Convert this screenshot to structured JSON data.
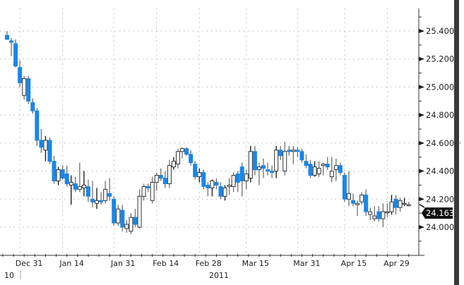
{
  "chart_data": {
    "type": "candlestick",
    "title": "",
    "xlabel": "",
    "ylabel": "",
    "ylim": [
      23.8,
      25.55
    ],
    "grid": true,
    "y_ticks": [
      "24.000",
      "24.200",
      "24.400",
      "24.600",
      "24.800",
      "25.000",
      "25.200",
      "25.400"
    ],
    "x_ticks": [
      {
        "label": "Dec 31",
        "index": 3
      },
      {
        "label": "Jan 14",
        "index": 13
      },
      {
        "label": "Jan 31",
        "index": 25
      },
      {
        "label": "Feb 14",
        "index": 35
      },
      {
        "label": "Feb 28",
        "index": 45
      },
      {
        "label": "Mar 15",
        "index": 56
      },
      {
        "label": "Mar 31",
        "index": 68
      },
      {
        "label": "Apr 15",
        "index": 79
      },
      {
        "label": "Apr 29",
        "index": 89
      }
    ],
    "year_labels": {
      "prev": "10",
      "current": "2011"
    },
    "last_price": "24.163",
    "colors": {
      "down": "#1a86e8",
      "up": "#ffffff",
      "wick": "#6f6f6f",
      "grid": "#b5b5b5",
      "badge": "#111111"
    },
    "ohlc_fields": [
      "open",
      "high",
      "low",
      "close"
    ],
    "ohlc": [
      [
        25.37,
        25.4,
        25.34,
        25.34
      ],
      [
        25.33,
        25.35,
        25.22,
        25.32
      ],
      [
        25.31,
        25.34,
        25.14,
        25.15
      ],
      [
        25.14,
        25.19,
        25.0,
        25.03
      ],
      [
        24.94,
        25.08,
        24.91,
        25.06
      ],
      [
        25.06,
        25.08,
        24.88,
        24.9
      ],
      [
        24.89,
        24.92,
        24.81,
        24.83
      ],
      [
        24.83,
        24.85,
        24.58,
        24.62
      ],
      [
        24.62,
        24.7,
        24.53,
        24.57
      ],
      [
        24.55,
        24.65,
        24.47,
        24.62
      ],
      [
        24.62,
        24.64,
        24.45,
        24.47
      ],
      [
        24.47,
        24.51,
        24.31,
        24.33
      ],
      [
        24.33,
        24.43,
        24.3,
        24.41
      ],
      [
        24.41,
        24.44,
        24.34,
        24.35
      ],
      [
        24.38,
        24.44,
        24.29,
        24.31
      ],
      [
        24.3,
        24.37,
        24.16,
        24.32
      ],
      [
        24.31,
        24.36,
        24.25,
        24.27
      ],
      [
        24.27,
        24.46,
        24.25,
        24.29
      ],
      [
        24.28,
        24.4,
        24.22,
        24.3
      ],
      [
        24.29,
        24.34,
        24.18,
        24.22
      ],
      [
        24.2,
        24.33,
        24.14,
        24.18
      ],
      [
        24.17,
        24.28,
        24.13,
        24.19
      ],
      [
        24.19,
        24.25,
        24.16,
        24.18
      ],
      [
        24.19,
        24.33,
        24.17,
        24.27
      ],
      [
        24.24,
        24.35,
        24.19,
        24.22
      ],
      [
        24.2,
        24.22,
        24.01,
        24.03
      ],
      [
        24.03,
        24.16,
        24.01,
        24.13
      ],
      [
        24.12,
        24.16,
        23.97,
        24.0
      ],
      [
        23.99,
        24.05,
        23.96,
        24.02
      ],
      [
        23.97,
        24.1,
        23.95,
        24.07
      ],
      [
        24.07,
        24.13,
        24.0,
        24.02
      ],
      [
        24.0,
        24.27,
        23.99,
        24.22
      ],
      [
        24.22,
        24.31,
        24.19,
        24.29
      ],
      [
        24.29,
        24.31,
        24.25,
        24.28
      ],
      [
        24.19,
        24.36,
        24.17,
        24.32
      ],
      [
        24.32,
        24.39,
        24.26,
        24.37
      ],
      [
        24.37,
        24.42,
        24.33,
        24.35
      ],
      [
        24.35,
        24.4,
        24.28,
        24.31
      ],
      [
        24.31,
        24.48,
        24.28,
        24.44
      ],
      [
        24.43,
        24.5,
        24.41,
        24.47
      ],
      [
        24.45,
        24.56,
        24.42,
        24.54
      ],
      [
        24.54,
        24.57,
        24.49,
        24.56
      ],
      [
        24.56,
        24.57,
        24.51,
        24.52
      ],
      [
        24.52,
        24.55,
        24.44,
        24.46
      ],
      [
        24.45,
        24.47,
        24.34,
        24.36
      ],
      [
        24.36,
        24.42,
        24.32,
        24.39
      ],
      [
        24.39,
        24.41,
        24.27,
        24.29
      ],
      [
        24.3,
        24.32,
        24.22,
        24.28
      ],
      [
        24.28,
        24.34,
        24.22,
        24.33
      ],
      [
        24.32,
        24.35,
        24.27,
        24.3
      ],
      [
        24.29,
        24.32,
        24.2,
        24.22
      ],
      [
        24.22,
        24.3,
        24.19,
        24.28
      ],
      [
        24.29,
        24.35,
        24.23,
        24.3
      ],
      [
        24.29,
        24.39,
        24.25,
        24.37
      ],
      [
        24.38,
        24.4,
        24.25,
        24.32
      ],
      [
        24.43,
        24.46,
        24.22,
        24.33
      ],
      [
        24.33,
        24.41,
        24.27,
        24.38
      ],
      [
        24.35,
        24.58,
        24.32,
        24.54
      ],
      [
        24.54,
        24.58,
        24.37,
        24.41
      ],
      [
        24.41,
        24.46,
        24.3,
        24.43
      ],
      [
        24.44,
        24.49,
        24.35,
        24.42
      ],
      [
        24.41,
        24.46,
        24.37,
        24.4
      ],
      [
        24.4,
        24.44,
        24.35,
        24.39
      ],
      [
        24.4,
        24.58,
        24.35,
        24.55
      ],
      [
        24.55,
        24.58,
        24.48,
        24.51
      ],
      [
        24.4,
        24.61,
        24.37,
        24.54
      ],
      [
        24.55,
        24.58,
        24.51,
        24.54
      ],
      [
        24.54,
        24.58,
        24.45,
        24.55
      ],
      [
        24.55,
        24.57,
        24.5,
        24.54
      ],
      [
        24.54,
        24.56,
        24.46,
        24.48
      ],
      [
        24.47,
        24.52,
        24.42,
        24.44
      ],
      [
        24.45,
        24.48,
        24.35,
        24.37
      ],
      [
        24.37,
        24.47,
        24.36,
        24.43
      ],
      [
        24.38,
        24.47,
        24.36,
        24.42
      ],
      [
        24.44,
        24.46,
        24.37,
        24.45
      ],
      [
        24.45,
        24.5,
        24.41,
        24.43
      ],
      [
        24.36,
        24.5,
        24.32,
        24.4
      ],
      [
        24.41,
        24.49,
        24.33,
        24.44
      ],
      [
        24.44,
        24.46,
        24.37,
        24.39
      ],
      [
        24.37,
        24.39,
        24.18,
        24.2
      ],
      [
        24.2,
        24.4,
        24.15,
        24.24
      ],
      [
        24.19,
        24.24,
        24.15,
        24.17
      ],
      [
        24.16,
        24.19,
        24.08,
        24.17
      ],
      [
        24.18,
        24.25,
        24.16,
        24.23
      ],
      [
        24.23,
        24.27,
        24.08,
        24.11
      ],
      [
        24.09,
        24.14,
        24.05,
        24.11
      ],
      [
        24.06,
        24.15,
        24.04,
        24.08
      ],
      [
        24.11,
        24.15,
        24.04,
        24.06
      ],
      [
        24.06,
        24.17,
        24.0,
        24.11
      ],
      [
        24.11,
        24.17,
        24.07,
        24.11
      ],
      [
        24.11,
        24.23,
        24.09,
        24.18
      ],
      [
        24.2,
        24.23,
        24.09,
        24.14
      ],
      [
        24.14,
        24.21,
        24.11,
        24.19
      ],
      [
        24.17,
        24.21,
        24.15,
        24.17
      ],
      [
        24.16,
        24.18,
        24.15,
        24.16
      ]
    ]
  }
}
